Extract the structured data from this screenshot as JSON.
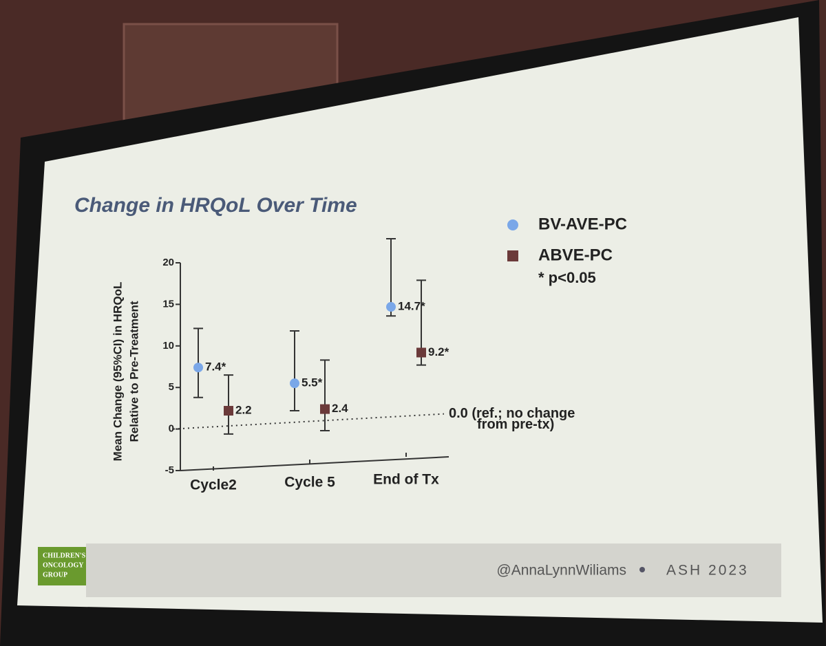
{
  "chart_data": {
    "type": "errorbar",
    "title": "Change in HRQoL Over Time",
    "y_label": [
      "Mean Change (95%CI) in HRQoL",
      "Relative to Pre-Treatment"
    ],
    "categories": [
      "Cycle2",
      "Cycle 5",
      "End of Tx"
    ],
    "series": [
      {
        "name": "BV-AVE-PC",
        "color": "#7aa7e8",
        "marker": "circle",
        "values": [
          7.4,
          5.5,
          14.7
        ],
        "value_labels": [
          "7.4*",
          "5.5*",
          "14.7*"
        ],
        "ci_low": [
          3.8,
          2.2,
          13.6
        ],
        "ci_high": [
          12.1,
          11.8,
          22.9
        ]
      },
      {
        "name": "ABVE-PC",
        "color": "#6b3a3a",
        "marker": "square",
        "values": [
          2.2,
          2.4,
          9.2
        ],
        "value_labels": [
          "2.2",
          "2.4",
          "9.2*"
        ],
        "ci_low": [
          -0.6,
          -0.2,
          7.7
        ],
        "ci_high": [
          6.5,
          8.3,
          17.9
        ]
      }
    ],
    "note": "* p<0.05",
    "reference_line": {
      "value": 0,
      "label": [
        "0.0 (ref.; no change",
        "from pre-tx)"
      ]
    },
    "ylim": [
      -5,
      20
    ],
    "yticks": [
      -5,
      0,
      5,
      10,
      15,
      20
    ]
  },
  "footer": {
    "logo": [
      "CHILDREN'S",
      "ONCOLOGY",
      "GROUP"
    ],
    "handle": "@AnnaLynnWiliams",
    "event": "ASH 2023"
  }
}
